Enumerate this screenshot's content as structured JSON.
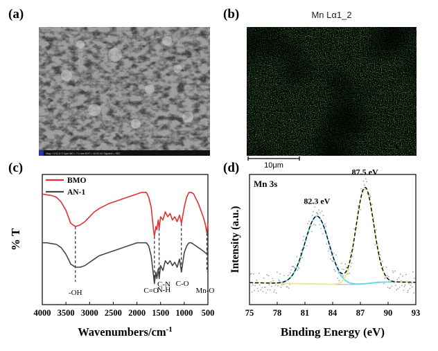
{
  "panels": {
    "a": "(a)",
    "b": "(b)",
    "c": "(c)",
    "d": "(d)"
  },
  "sem": {
    "footer": "Mag = 5.01 K X   2μm   WD = 7.1 mm   EHT = 10.00 kV   Signal A = SE2"
  },
  "eds": {
    "title": "Mn Lα1_2",
    "scalebar": "10μm",
    "color": "#1f7a1f"
  },
  "chart_data": [
    {
      "type": "line",
      "panel": "(c)",
      "xlabel": "Wavenumbers/cm",
      "xlabel_sup": "-1",
      "ylabel": "% T",
      "xlim": [
        4000,
        500
      ],
      "xticks": [
        4000,
        3500,
        3000,
        2500,
        2000,
        1500,
        1000,
        500
      ],
      "series": [
        {
          "name": "BMO",
          "color": "#e03030",
          "x": [
            4000,
            3900,
            3800,
            3700,
            3600,
            3500,
            3450,
            3400,
            3300,
            3200,
            3100,
            3000,
            2900,
            2800,
            2600,
            2400,
            2200,
            2000,
            1900,
            1800,
            1750,
            1700,
            1650,
            1630,
            1600,
            1580,
            1550,
            1530,
            1500,
            1450,
            1400,
            1350,
            1300,
            1250,
            1200,
            1150,
            1100,
            1060,
            1000,
            950,
            900,
            850,
            800,
            750,
            700,
            650,
            600,
            560,
            520,
            500
          ],
          "y": [
            88,
            87.5,
            87,
            86,
            83,
            78,
            74,
            70,
            68,
            69,
            71,
            74,
            77,
            79,
            82,
            84,
            86,
            88,
            89,
            89,
            86,
            80,
            66,
            62,
            68,
            66,
            72,
            67,
            74,
            72,
            77,
            74,
            76,
            72,
            74,
            71,
            75,
            70,
            80,
            86,
            89,
            89,
            88,
            85,
            82,
            78,
            74,
            70,
            64,
            70
          ]
        },
        {
          "name": "AN-1",
          "color": "#444444",
          "x": [
            4000,
            3900,
            3800,
            3700,
            3600,
            3500,
            3450,
            3400,
            3300,
            3200,
            3100,
            3000,
            2900,
            2800,
            2600,
            2400,
            2200,
            2000,
            1900,
            1800,
            1750,
            1700,
            1650,
            1630,
            1600,
            1580,
            1550,
            1530,
            1500,
            1450,
            1400,
            1350,
            1300,
            1250,
            1200,
            1150,
            1100,
            1060,
            1000,
            950,
            900,
            850,
            800,
            750,
            700,
            650,
            600,
            560,
            520,
            500
          ],
          "y": [
            58,
            58,
            57.5,
            57,
            55,
            51,
            48,
            45,
            43,
            43,
            44,
            46,
            48,
            50,
            52,
            54,
            56,
            58,
            58,
            58,
            56,
            50,
            38,
            33,
            40,
            36,
            42,
            36,
            44,
            41,
            47,
            45,
            47,
            44,
            46,
            43,
            48,
            40,
            52,
            56,
            58,
            58,
            57,
            56,
            55,
            54,
            53,
            52,
            51,
            54
          ]
        }
      ],
      "annotations": [
        {
          "label": "-OH",
          "x": 3300
        },
        {
          "label": "C=O",
          "x": 1630
        },
        {
          "label": "C-N",
          "x": 1530
        },
        {
          "label": "N-H",
          "x": 1530
        },
        {
          "label": "C-O",
          "x": 1060
        },
        {
          "label": "Mn-O",
          "x": 520
        }
      ]
    },
    {
      "type": "line",
      "panel": "(d)",
      "title": "Mn 3s",
      "xlabel": "Binding Energy (eV)",
      "ylabel": "Intensity (a.u.)",
      "xlim": [
        75,
        93
      ],
      "xticks": [
        75,
        78,
        81,
        84,
        87,
        90,
        93
      ],
      "peaks": [
        {
          "label": "82.3 eV",
          "center": 82.3,
          "height": 1.0,
          "width": 1.3
        },
        {
          "label": "87.5 eV",
          "center": 87.5,
          "height": 1.42,
          "width": 0.95
        }
      ],
      "colors": {
        "data": "#a0a0a0",
        "fit": "#000000",
        "peak1": "#5ad8e8",
        "peak2": "#e8e890",
        "background": "#b8b8b8"
      }
    }
  ]
}
